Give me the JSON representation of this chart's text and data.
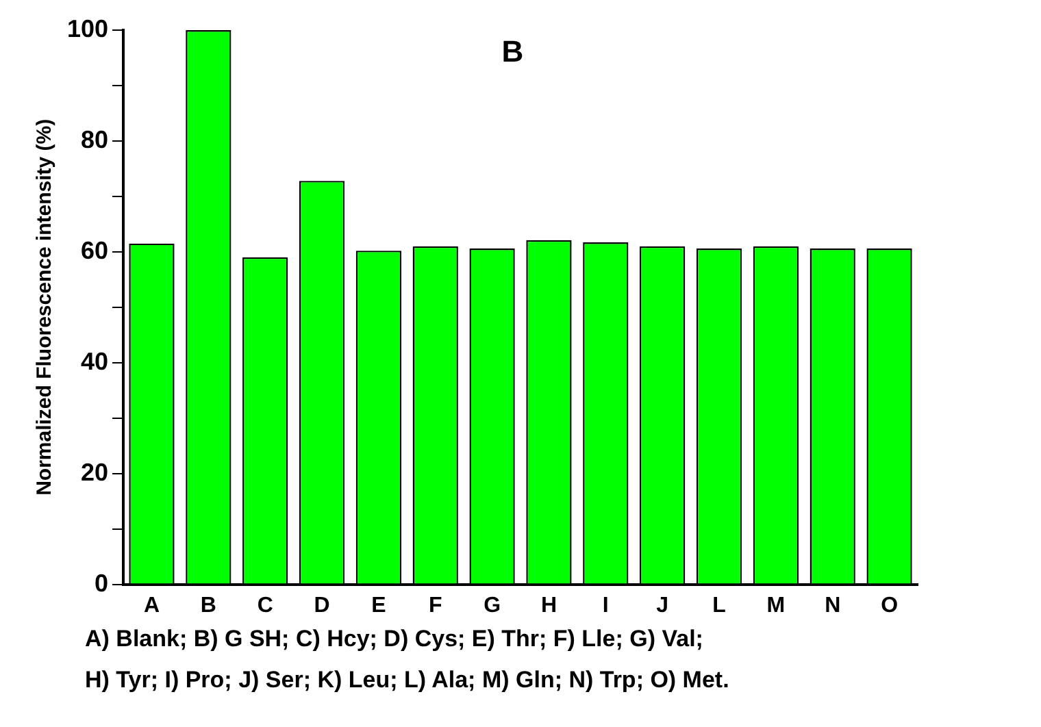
{
  "chart_data": {
    "type": "bar",
    "title": "B",
    "ylabel": "Normalized Fluorescence intensity (%)",
    "categories": [
      "A",
      "B",
      "C",
      "D",
      "E",
      "F",
      "G",
      "H",
      "I",
      "J",
      "L",
      "M",
      "N",
      "O"
    ],
    "values": [
      61.5,
      100,
      59,
      72.8,
      60.2,
      61,
      60.6,
      62.1,
      61.7,
      61,
      60.6,
      61,
      60.6,
      60.6
    ],
    "color": "#00ff00",
    "ylim": [
      0,
      100
    ],
    "yticks": [
      0,
      {
        "value": 10,
        "label": null
      },
      20,
      {
        "value": 30,
        "label": null
      },
      40,
      {
        "value": 50,
        "label": null
      },
      60,
      {
        "value": 70,
        "label": null
      },
      80,
      {
        "value": 90,
        "label": null
      },
      100
    ],
    "grid": false,
    "legend": false,
    "annotations": [
      "A) Blank; B) G SH; C) Hcy; D) Cys; E) Thr; F) Lle; G) Val;",
      "H) Tyr; I) Pro; J) Ser; K) Leu; L) Ala; M) Gln; N) Trp; O) Met."
    ]
  }
}
